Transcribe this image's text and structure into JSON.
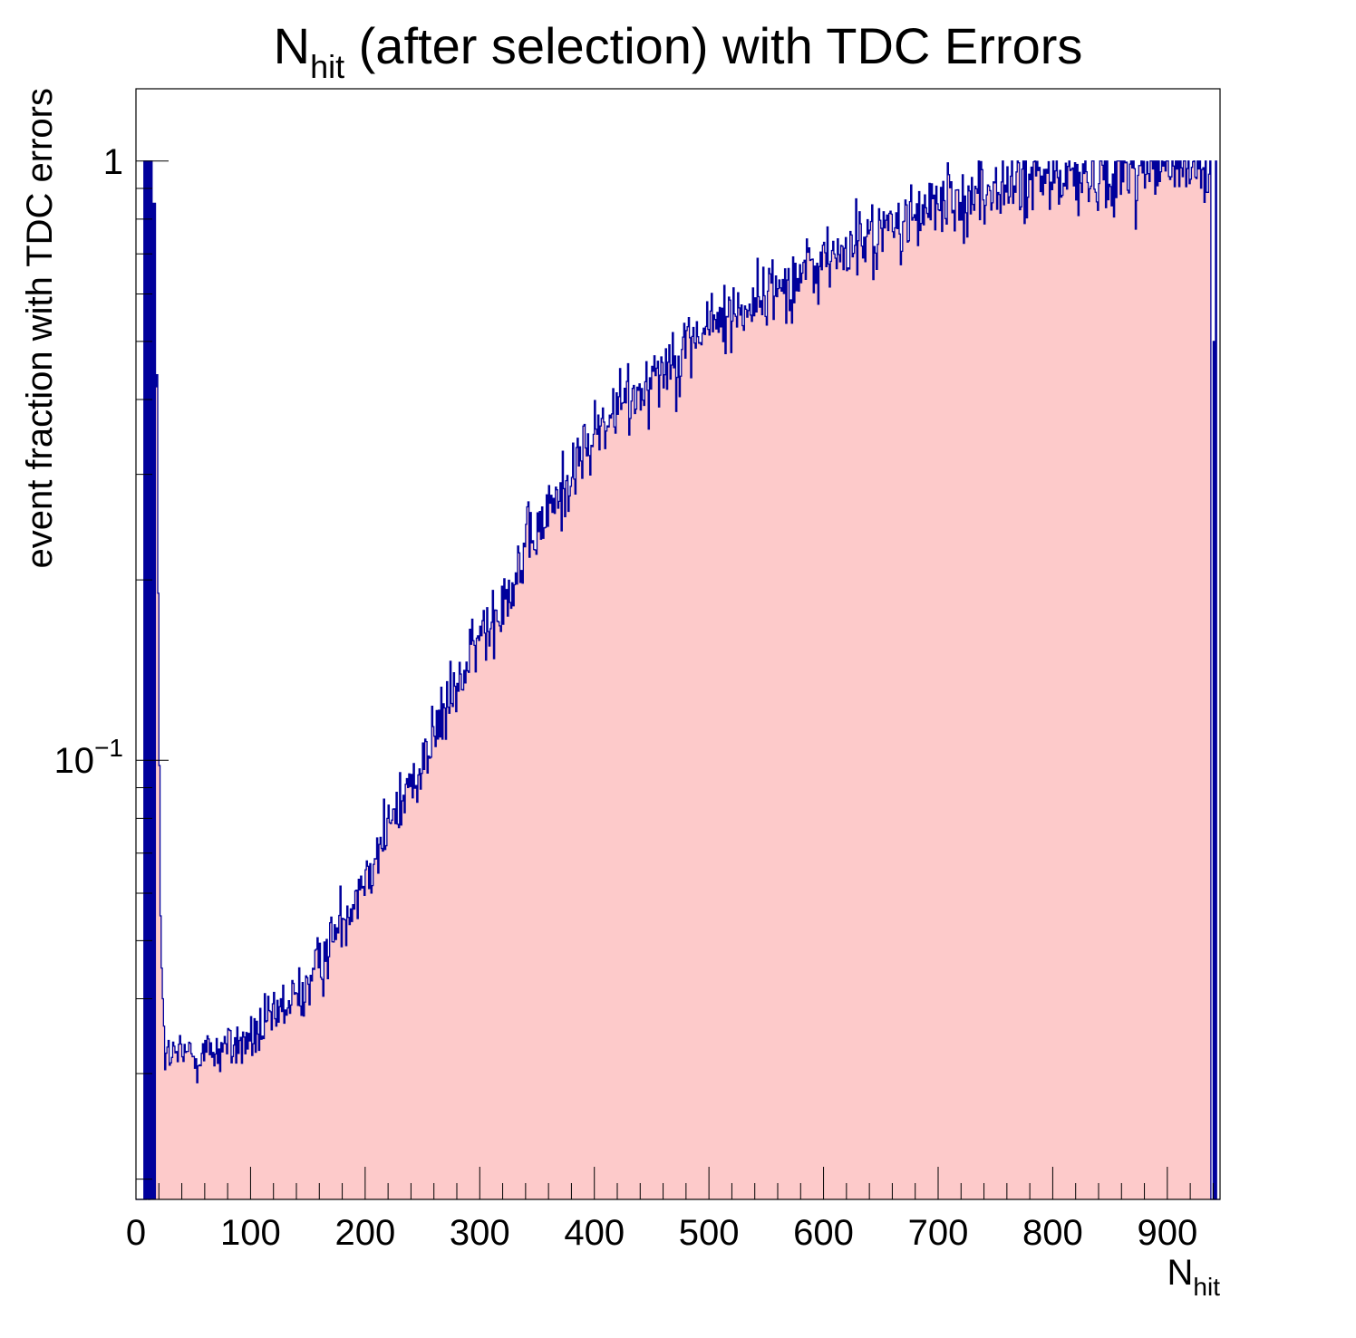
{
  "chart_data": {
    "type": "histogram",
    "title": {
      "base": "N",
      "sub": "hit",
      "rest": " (after selection) with TDC Errors"
    },
    "xlabel": {
      "base": "N",
      "sub": "hit"
    },
    "ylabel": "event fraction with TDC errors",
    "x_range": [
      0,
      946
    ],
    "y_range": [
      0.0185,
      1.32
    ],
    "y_scale": "log",
    "x_ticks": [
      0,
      100,
      200,
      300,
      400,
      500,
      600,
      700,
      800,
      900
    ],
    "x_tick_labels": [
      "0",
      "100",
      "200",
      "300",
      "400",
      "500",
      "600",
      "700",
      "800",
      "900"
    ],
    "y_ticks": [
      {
        "value": 1,
        "label": "1"
      },
      {
        "value": 0.1,
        "label_base": "10",
        "label_exp": "−1"
      }
    ],
    "bin_width": 1,
    "fill_color": "#fdcaca",
    "line_color": "#00009c",
    "grid": false,
    "legend": "none",
    "spike_bins": [
      {
        "x": 7,
        "y": 1
      },
      {
        "x": 9,
        "y": 1
      },
      {
        "x": 10,
        "y": 1
      },
      {
        "x": 12,
        "y": 1
      },
      {
        "x": 13,
        "y": 1
      },
      {
        "x": 14,
        "y": 0.82
      },
      {
        "x": 15,
        "y": 0.85
      },
      {
        "x": 16,
        "y": 0.85
      },
      {
        "x": 17,
        "y": 0.42
      },
      {
        "x": 18,
        "y": 0.44
      },
      {
        "x": 19,
        "y": 0.19
      },
      {
        "x": 20,
        "y": 0.098
      },
      {
        "x": 21,
        "y": 0.055
      },
      {
        "x": 22,
        "y": 0.045
      },
      {
        "x": 23,
        "y": 0.04
      },
      {
        "x": 24,
        "y": 0.036
      }
    ],
    "zero_bins": [
      0,
      1,
      2,
      3,
      4,
      5,
      6,
      8,
      11,
      938,
      939,
      941,
      943,
      944,
      945
    ],
    "trend_points": [
      {
        "x": 25,
        "y": 0.032
      },
      {
        "x": 60,
        "y": 0.0325
      },
      {
        "x": 100,
        "y": 0.034
      },
      {
        "x": 150,
        "y": 0.042
      },
      {
        "x": 200,
        "y": 0.065
      },
      {
        "x": 250,
        "y": 0.1
      },
      {
        "x": 300,
        "y": 0.16
      },
      {
        "x": 350,
        "y": 0.24
      },
      {
        "x": 400,
        "y": 0.35
      },
      {
        "x": 450,
        "y": 0.44
      },
      {
        "x": 500,
        "y": 0.53
      },
      {
        "x": 550,
        "y": 0.6
      },
      {
        "x": 600,
        "y": 0.68
      },
      {
        "x": 650,
        "y": 0.76
      },
      {
        "x": 700,
        "y": 0.84
      },
      {
        "x": 750,
        "y": 0.9
      },
      {
        "x": 800,
        "y": 0.93
      },
      {
        "x": 850,
        "y": 0.96
      },
      {
        "x": 900,
        "y": 0.97
      },
      {
        "x": 937,
        "y": 0.97
      }
    ],
    "noise_sigma": 0.065,
    "max_value": 1,
    "special_bins": [
      {
        "x": 940,
        "y": 0.5
      },
      {
        "x": 942,
        "y": 1
      }
    ]
  }
}
